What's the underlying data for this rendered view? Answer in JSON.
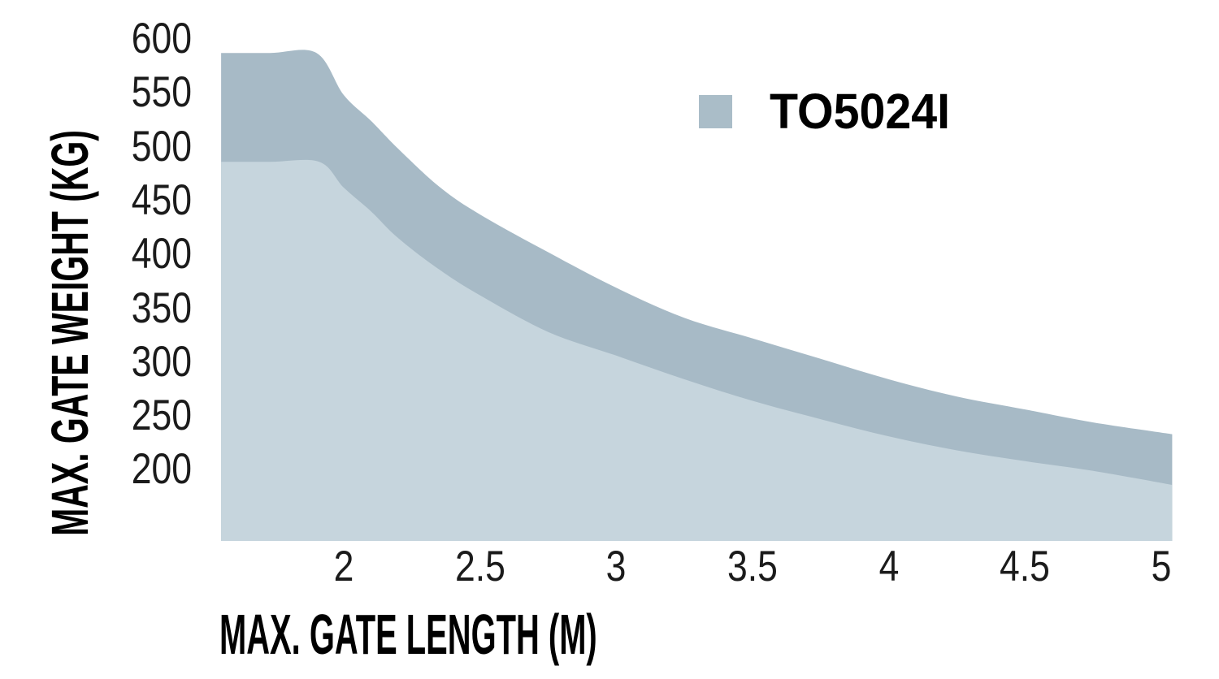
{
  "chart_data": {
    "type": "area",
    "title": "",
    "xlabel": "MAX. GATE LENGTH (M)",
    "ylabel": "MAX. GATE WEIGHT (KG)",
    "xlim": [
      1.55,
      5.04
    ],
    "ylim": [
      134,
      600
    ],
    "xticks": [
      "2",
      "2.5",
      "3",
      "3.5",
      "4",
      "4.5",
      "5"
    ],
    "xtick_values": [
      2,
      2.5,
      3,
      3.5,
      4,
      4.5,
      5
    ],
    "yticks": [
      "600",
      "550",
      "500",
      "450",
      "400",
      "350",
      "300",
      "250",
      "200"
    ],
    "ytick_values": [
      600,
      550,
      500,
      450,
      400,
      350,
      300,
      250,
      200
    ],
    "grid": false,
    "background": "#ffffff",
    "text_color": "#1b1b1b",
    "legend": {
      "position": "top-right",
      "entries": [
        {
          "label": "TO5024I",
          "color": "#aabdc8"
        }
      ]
    },
    "series": [
      {
        "name": "TO5024I",
        "role": "upper weight limit area (dark band top edge)",
        "color": "#a7bac6",
        "points_m_kg": [
          [
            1.55,
            587
          ],
          [
            1.73,
            587
          ],
          [
            1.9,
            587
          ],
          [
            2.0,
            548
          ],
          [
            2.1,
            524
          ],
          [
            2.2,
            498
          ],
          [
            2.35,
            463
          ],
          [
            2.5,
            437
          ],
          [
            2.75,
            402
          ],
          [
            3.0,
            369
          ],
          [
            3.25,
            341
          ],
          [
            3.5,
            322
          ],
          [
            3.75,
            303
          ],
          [
            4.0,
            284
          ],
          [
            4.25,
            268
          ],
          [
            4.5,
            256
          ],
          [
            4.75,
            244
          ],
          [
            5.04,
            233
          ]
        ]
      },
      {
        "name": "",
        "role": "lower unlabeled limit area (light area top edge)",
        "color": "#c6d5dd",
        "points_m_kg": [
          [
            1.55,
            486
          ],
          [
            1.73,
            486
          ],
          [
            1.91,
            486
          ],
          [
            2.0,
            462
          ],
          [
            2.1,
            440
          ],
          [
            2.2,
            415
          ],
          [
            2.35,
            386
          ],
          [
            2.5,
            362
          ],
          [
            2.75,
            328
          ],
          [
            3.0,
            306
          ],
          [
            3.25,
            284
          ],
          [
            3.5,
            264
          ],
          [
            3.75,
            247
          ],
          [
            4.0,
            231
          ],
          [
            4.25,
            218
          ],
          [
            4.5,
            208
          ],
          [
            4.75,
            199
          ],
          [
            5.04,
            186
          ]
        ]
      }
    ]
  }
}
